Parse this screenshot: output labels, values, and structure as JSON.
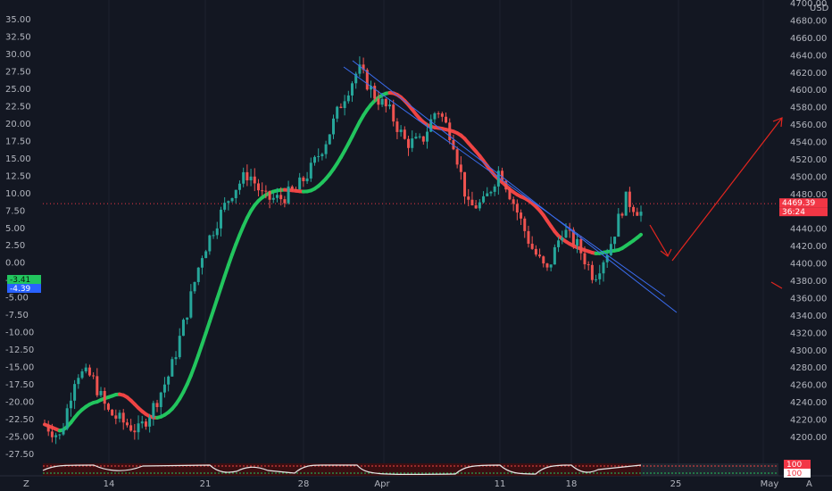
{
  "chart_data": {
    "type": "candlestick",
    "currency": "USD",
    "left_axis": {
      "ticks": [
        "35.00",
        "32.50",
        "30.00",
        "27.50",
        "25.00",
        "22.50",
        "20.00",
        "17.50",
        "15.00",
        "12.50",
        "10.00",
        "7.50",
        "5.00",
        "2.50",
        "0.00",
        "-2.50",
        "-5.00",
        "-7.50",
        "-10.00",
        "-12.50",
        "-15.00",
        "-17.50",
        "-20.00",
        "-22.50",
        "-25.00",
        "-27.50"
      ],
      "values": [
        35,
        32.5,
        30,
        27.5,
        25,
        22.5,
        20,
        17.5,
        15,
        12.5,
        10,
        7.5,
        5,
        2.5,
        0,
        -2.5,
        -5,
        -7.5,
        -10,
        -12.5,
        -15,
        -17.5,
        -20,
        -22.5,
        -25,
        -27.5
      ],
      "range": [
        -28.5,
        35.5
      ]
    },
    "right_axis": {
      "ticks": [
        "4700.00",
        "4680.00",
        "4660.00",
        "4640.00",
        "4620.00",
        "4600.00",
        "4580.00",
        "4560.00",
        "4540.00",
        "4520.00",
        "4500.00",
        "4480.00",
        "4460.00",
        "4440.00",
        "4420.00",
        "4400.00",
        "4380.00",
        "4360.00",
        "4340.00",
        "4320.00",
        "4300.00",
        "4280.00",
        "4260.00",
        "4240.00",
        "4220.00",
        "4200.00"
      ],
      "values": [
        4700,
        4680,
        4660,
        4640,
        4620,
        4600,
        4580,
        4560,
        4540,
        4520,
        4500,
        4480,
        4460,
        4440,
        4420,
        4400,
        4380,
        4360,
        4340,
        4320,
        4300,
        4280,
        4260,
        4240,
        4220,
        4200
      ],
      "range": [
        4200,
        4700
      ]
    },
    "x_axis_labels": [
      "14",
      "21",
      "28",
      "Apr",
      "11",
      "18",
      "25",
      "May"
    ],
    "current_price": "4469.39",
    "countdown": "36:24",
    "indicator_badges": [
      "-3.41",
      "-4.39"
    ],
    "oscillator_badges": [
      "100",
      "100"
    ],
    "oscillator_level": 1.0,
    "ohlc_note": "approximate daily/4h price path read from chart",
    "close_path": [
      [
        4230,
        4200
      ],
      [
        4210,
        4190
      ],
      [
        4250,
        4300
      ],
      [
        4280,
        4260
      ],
      [
        4240,
        4220
      ],
      [
        4230,
        4205
      ],
      [
        4215,
        4200
      ],
      [
        4235,
        4240
      ],
      [
        4250,
        4300
      ],
      [
        4300,
        4380
      ],
      [
        4400,
        4420
      ],
      [
        4440,
        4460
      ],
      [
        4470,
        4500
      ],
      [
        4500,
        4510
      ],
      [
        4480,
        4470
      ],
      [
        4460,
        4490
      ],
      [
        4470,
        4500
      ],
      [
        4500,
        4520
      ],
      [
        4530,
        4560
      ],
      [
        4570,
        4610
      ],
      [
        4630,
        4620
      ],
      [
        4610,
        4580
      ],
      [
        4590,
        4560
      ],
      [
        4560,
        4520
      ],
      [
        4530,
        4550
      ],
      [
        4570,
        4590
      ],
      [
        4560,
        4530
      ],
      [
        4470,
        4460
      ],
      [
        4460,
        4480
      ],
      [
        4500,
        4520
      ],
      [
        4490,
        4440
      ],
      [
        4430,
        4410
      ],
      [
        4380,
        4400
      ],
      [
        4430,
        4450
      ],
      [
        4440,
        4400
      ],
      [
        4380,
        4390
      ],
      [
        4400,
        4440
      ],
      [
        4470,
        4480
      ],
      [
        4450,
        4468
      ]
    ],
    "annotations": {
      "channel": "blue parallel descending trendlines",
      "arrows": "red projection arrows: down then up",
      "moving_average": "green/red colored smoothed line"
    }
  },
  "axis": {
    "currency_label": "USD",
    "bottom_left": "Z",
    "bottom_right": "A"
  }
}
